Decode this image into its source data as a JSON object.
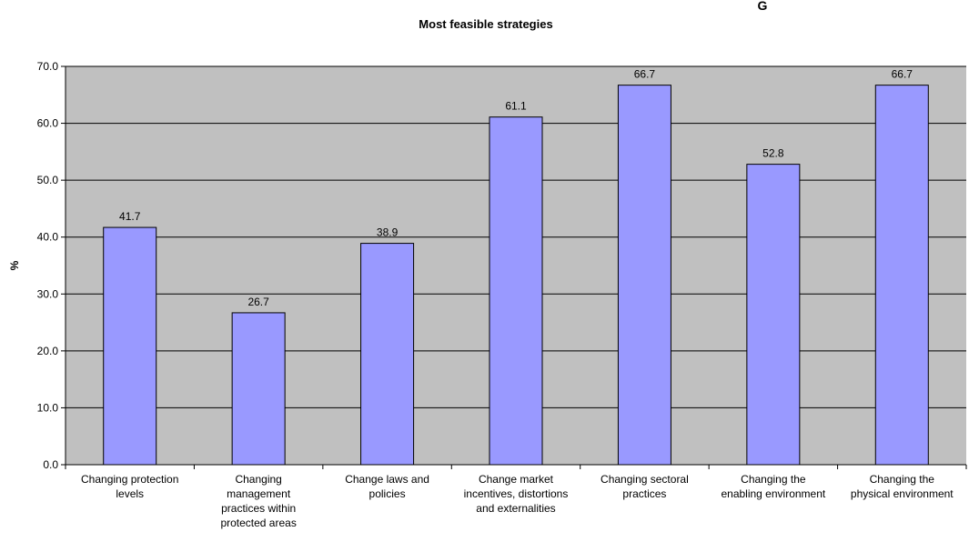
{
  "corner_mark": "G",
  "chart_data": {
    "type": "bar",
    "title": "Most feasible strategies",
    "xlabel": "",
    "ylabel": "%",
    "ylim": [
      0,
      70
    ],
    "yticks": [
      "0.0",
      "10.0",
      "20.0",
      "30.0",
      "40.0",
      "50.0",
      "60.0",
      "70.0"
    ],
    "grid": true,
    "categories": [
      [
        "Changing protection",
        "levels"
      ],
      [
        "Changing",
        "management",
        "practices within",
        "protected areas"
      ],
      [
        "Change laws and",
        "policies"
      ],
      [
        "Change market",
        "incentives, distortions",
        "and externalities"
      ],
      [
        "Changing sectoral",
        "practices"
      ],
      [
        "Changing the",
        "enabling environment"
      ],
      [
        "Changing the",
        "physical environment"
      ]
    ],
    "values": [
      41.7,
      26.7,
      38.9,
      61.1,
      66.7,
      52.8,
      66.7
    ],
    "data_labels": [
      "41.7",
      "26.7",
      "38.9",
      "61.1",
      "66.7",
      "52.8",
      "66.7"
    ],
    "colors": {
      "bar": "#9999ff",
      "plot_background": "#c0c0c0",
      "gridline": "#000000"
    }
  }
}
